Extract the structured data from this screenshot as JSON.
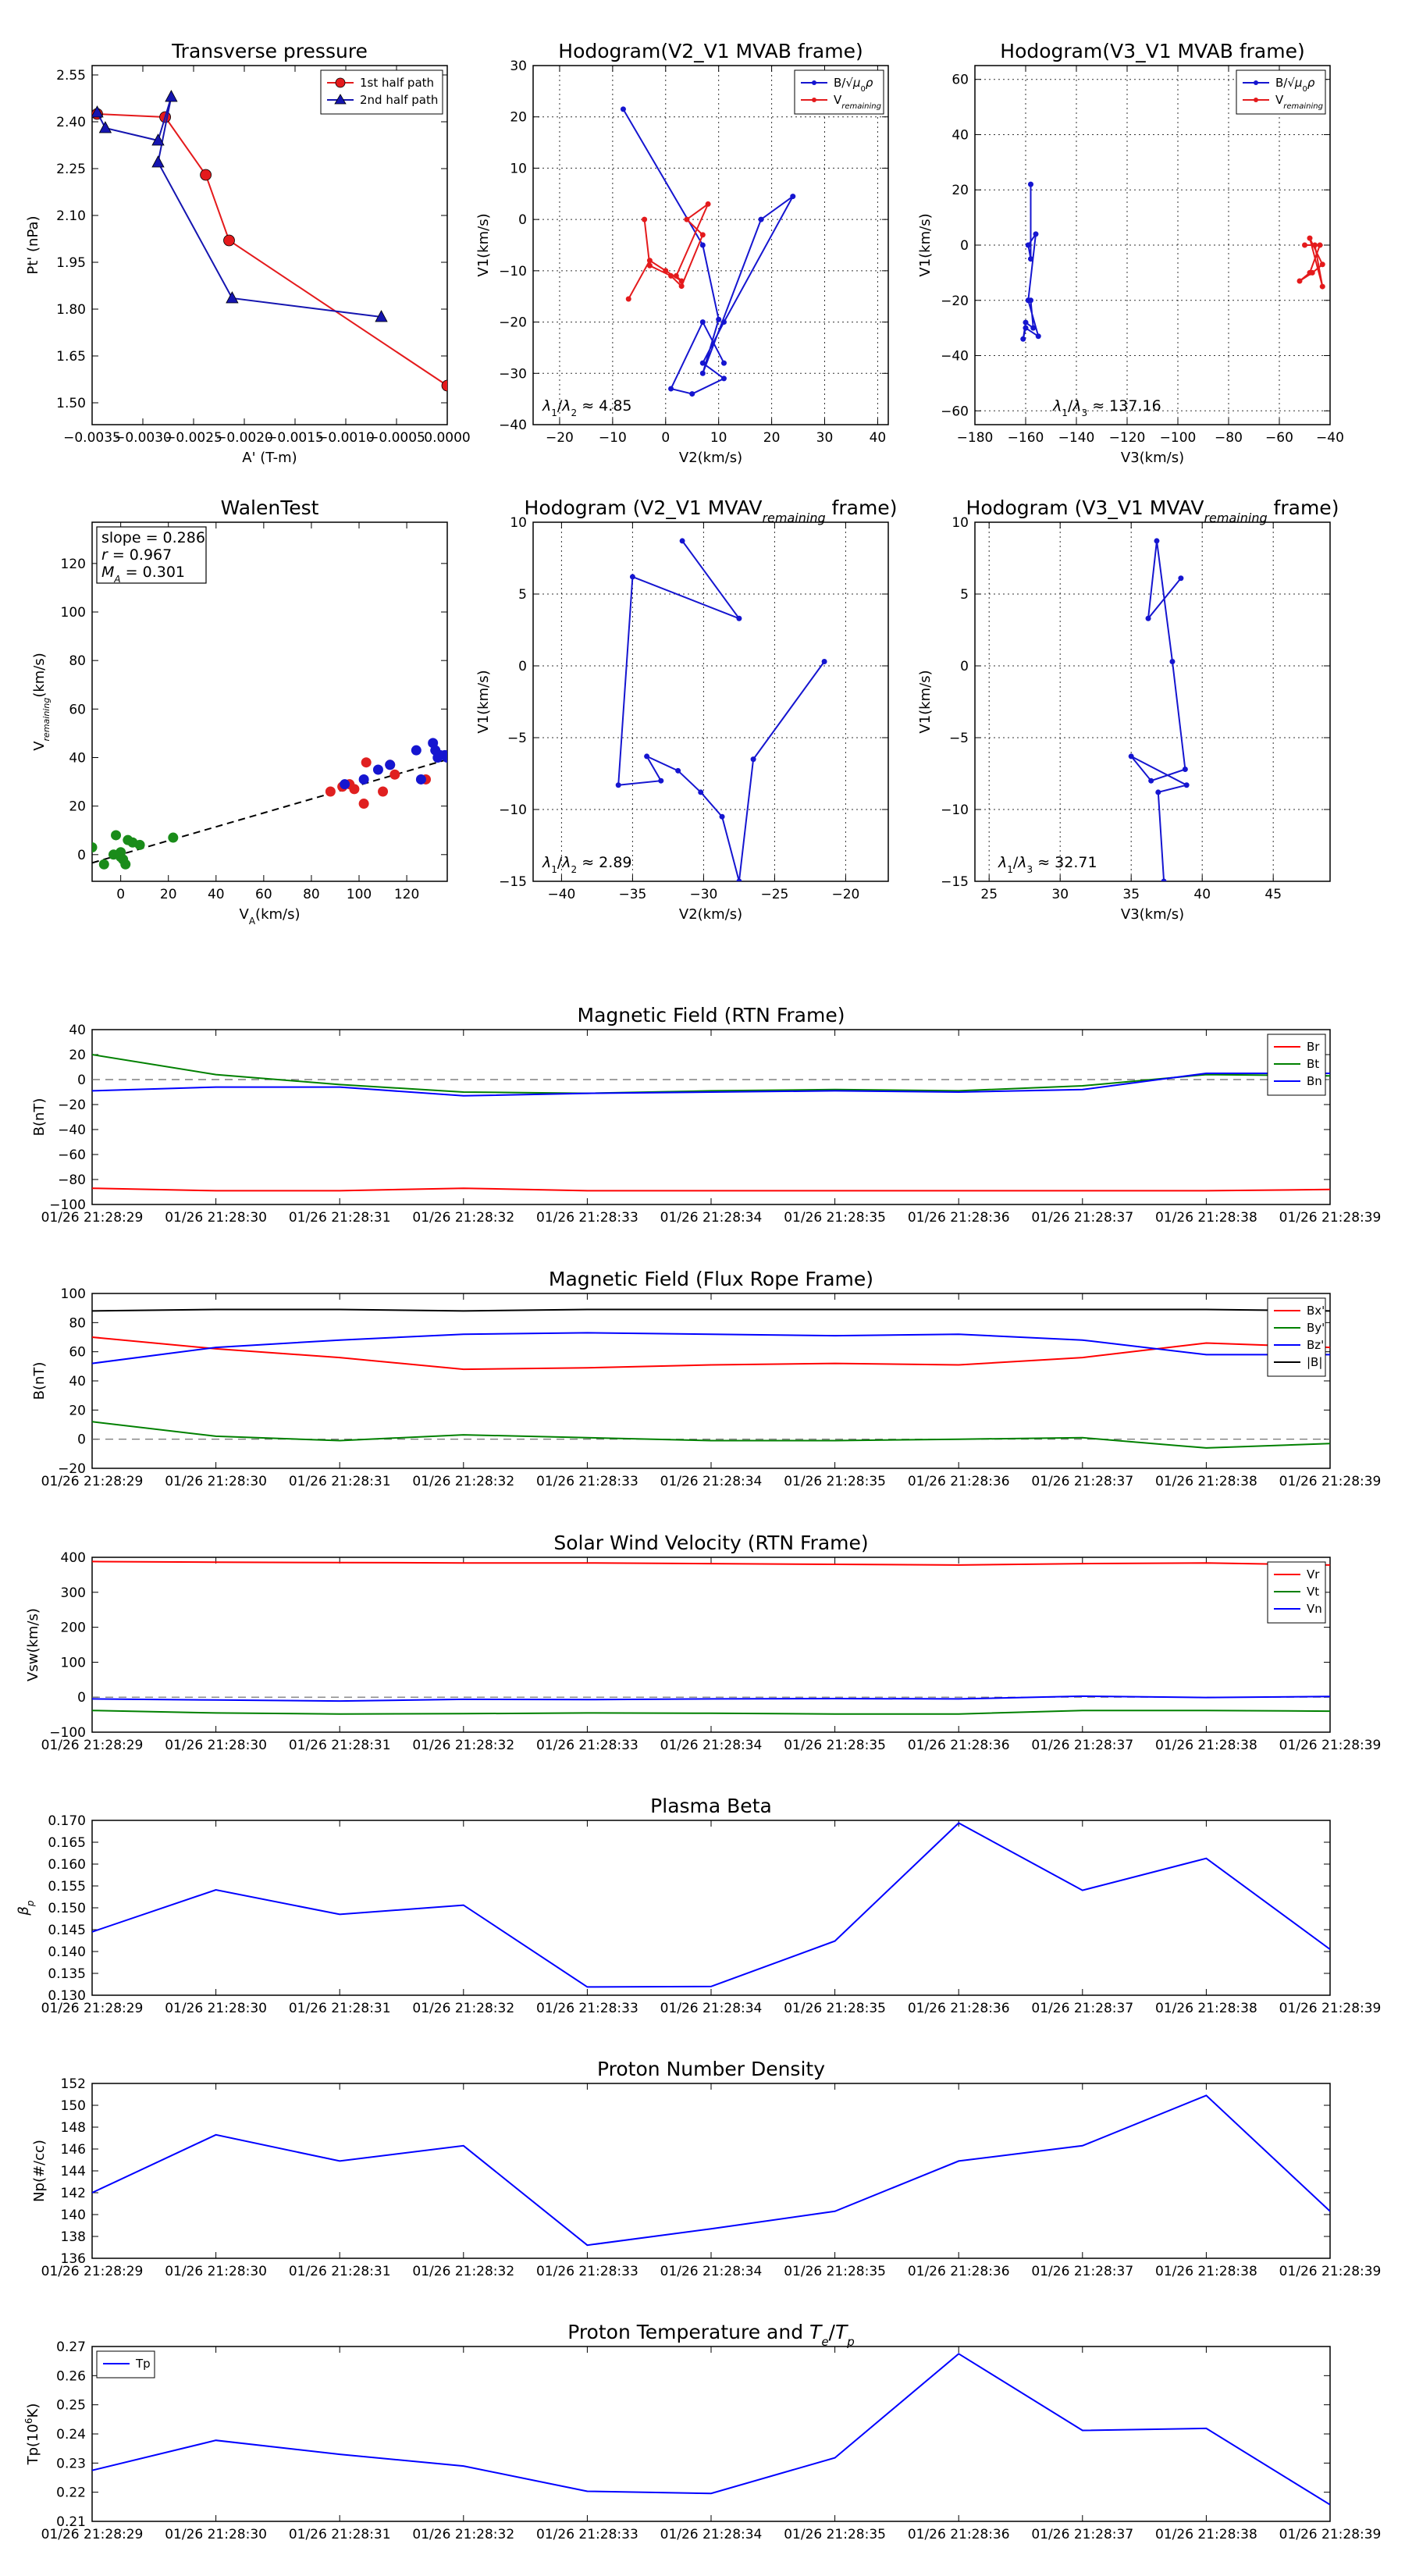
{
  "figure": {
    "background": "#ffffff"
  },
  "chart_data": [
    {
      "id": "tp",
      "type": "line",
      "title": "Transverse pressure",
      "xlabel": "A' (T-m)",
      "ylabel": "Pt' (nPa)",
      "xlim": [
        -0.0035,
        0.0
      ],
      "ylim": [
        1.43,
        2.58
      ],
      "xticks": [
        -0.0035,
        -0.003,
        -0.0025,
        -0.002,
        -0.0015,
        -0.001,
        -0.0005,
        0.0
      ],
      "xticklabels": [
        "−0.0035",
        "−0.0030",
        "−0.0025",
        "−0.0020",
        "−0.0015",
        "−0.0010",
        "−0.0005",
        "0.0000"
      ],
      "yticks": [
        1.5,
        1.65,
        1.8,
        1.95,
        2.1,
        2.25,
        2.4,
        2.55
      ],
      "yticklabels": [
        "1.50",
        "1.65",
        "1.80",
        "1.95",
        "2.10",
        "2.25",
        "2.40",
        "2.55"
      ],
      "legend": {
        "position": "top-right"
      },
      "series": [
        {
          "name": "1st half path",
          "color": "#e41a1c",
          "marker": "circle",
          "x": [
            -0.00345,
            -0.00278,
            -0.00238,
            -0.00215,
            0.0
          ],
          "y": [
            2.425,
            2.415,
            2.23,
            2.02,
            1.555
          ]
        },
        {
          "name": "2nd half path",
          "color": "#1515b0",
          "marker": "triangle",
          "x": [
            -0.00345,
            -0.00337,
            -0.00285,
            -0.00272,
            -0.00285,
            -0.00212,
            -0.00065
          ],
          "y": [
            2.43,
            2.38,
            2.34,
            2.48,
            2.27,
            1.835,
            1.775
          ]
        }
      ]
    },
    {
      "id": "h1",
      "type": "line",
      "title": "Hodogram(V2_V1 MVAB frame)",
      "xlabel": "V2(km/s)",
      "ylabel": "V1(km/s)",
      "xlim": [
        -25,
        42
      ],
      "ylim": [
        -40,
        30
      ],
      "xticks": [
        -20,
        -10,
        0,
        10,
        20,
        30,
        40
      ],
      "yticks": [
        -40,
        -30,
        -20,
        -10,
        0,
        10,
        20,
        30
      ],
      "grid": true,
      "annotation": "λ1/λ2 ≈ 4.85",
      "legend": {
        "position": "top-right"
      },
      "series": [
        {
          "name": "B/√(μ0ρ)",
          "color": "#1515d0",
          "x": [
            -8,
            7,
            10,
            7,
            18,
            24,
            11,
            7,
            11,
            5,
            1,
            7,
            11
          ],
          "y": [
            21.5,
            -5,
            -19.5,
            -30,
            0,
            4.5,
            -20,
            -28,
            -31,
            -34,
            -33,
            -20,
            -28
          ]
        },
        {
          "name": "V_remaining",
          "color": "#e41a1c",
          "x": [
            -4,
            -3,
            1,
            3,
            7,
            4,
            8,
            2,
            3,
            0,
            -3,
            -7
          ],
          "y": [
            0,
            -9,
            -11,
            -13,
            -3,
            0,
            3,
            -11,
            -12,
            -10,
            -8,
            -15.5
          ]
        }
      ]
    },
    {
      "id": "h2",
      "type": "line",
      "title": "Hodogram(V3_V1 MVAB frame)",
      "xlabel": "V3(km/s)",
      "ylabel": "V1(km/s)",
      "xlim": [
        -180,
        -40
      ],
      "ylim": [
        -65,
        65
      ],
      "xticks": [
        -180,
        -160,
        -140,
        -120,
        -100,
        -80,
        -60,
        -40
      ],
      "yticks": [
        -60,
        -40,
        -20,
        0,
        20,
        40,
        60
      ],
      "grid": true,
      "annotation": "λ1/λ3 ≈ 137.16",
      "legend": {
        "position": "top-right"
      },
      "series": [
        {
          "name": "B/√(μ0ρ)",
          "color": "#1515d0",
          "x": [
            -158,
            -158,
            -159,
            -156,
            -159,
            -155,
            -160,
            -161,
            -160,
            -157,
            -158
          ],
          "y": [
            22,
            -5,
            0,
            4,
            -20,
            -33,
            -30,
            -34,
            -28,
            -30,
            -20
          ]
        },
        {
          "name": "V_remaining",
          "color": "#e41a1c",
          "x": [
            -50,
            -46,
            -43,
            -48,
            -43,
            -47,
            -52,
            -48,
            -44
          ],
          "y": [
            0,
            0,
            -15,
            2.5,
            -7,
            -10,
            -13,
            -10,
            0
          ]
        }
      ]
    },
    {
      "id": "walen",
      "type": "scatter",
      "title": "WalenTest",
      "xlabel": "V_A(km/s)",
      "ylabel": "V_remaining(km/s)",
      "xlim": [
        -12,
        137
      ],
      "ylim": [
        -11,
        137
      ],
      "xticks": [
        0,
        20,
        40,
        60,
        80,
        100,
        120
      ],
      "yticks": [
        0,
        20,
        40,
        60,
        80,
        100,
        120
      ],
      "textbox": [
        "slope = 0.286",
        "r = 0.967",
        "M_A = 0.301"
      ],
      "fit_line": {
        "x": [
          -12,
          137
        ],
        "y": [
          -3.4,
          39.2
        ],
        "style": "dashed"
      },
      "series": [
        {
          "color": "#1a8c1a",
          "x": [
            -12,
            -7,
            -3,
            -2,
            0,
            0,
            1,
            2,
            3,
            5,
            8,
            22
          ],
          "y": [
            3,
            -4,
            0,
            8,
            1,
            -1,
            -2,
            -4,
            6,
            5,
            4,
            7
          ]
        },
        {
          "color": "#e02020",
          "x": [
            88,
            93,
            96,
            98,
            102,
            103,
            110,
            113,
            115,
            128
          ],
          "y": [
            26,
            28,
            29,
            27,
            21,
            38,
            26,
            37,
            33,
            31
          ]
        },
        {
          "color": "#1515d0",
          "x": [
            94,
            102,
            108,
            113,
            124,
            126,
            131,
            132,
            133,
            134,
            136,
            137
          ],
          "y": [
            29,
            31,
            35,
            37,
            43,
            31,
            46,
            43,
            40,
            41,
            41,
            40
          ]
        }
      ]
    },
    {
      "id": "h3",
      "type": "line",
      "title": "Hodogram (V2_V1 MVAV_remaining frame)",
      "xlabel": "V2(km/s)",
      "ylabel": "V1(km/s)",
      "xlim": [
        -42,
        -17
      ],
      "ylim": [
        -15,
        10
      ],
      "xticks": [
        -40,
        -35,
        -30,
        -25,
        -20
      ],
      "yticks": [
        -15,
        -10,
        -5,
        0,
        5,
        10
      ],
      "grid": true,
      "annotation": "λ1/λ2 ≈ 2.89",
      "series": [
        {
          "color": "#1515d0",
          "x": [
            -21.5,
            -26.5,
            -27.5,
            -28.7,
            -30.2,
            -31.8,
            -34,
            -33,
            -36,
            -35,
            -27.5,
            -31.5
          ],
          "y": [
            0.3,
            -6.5,
            -15,
            -10.5,
            -8.8,
            -7.3,
            -6.3,
            -8,
            -8.3,
            6.2,
            3.3,
            8.7
          ]
        }
      ]
    },
    {
      "id": "h4",
      "type": "line",
      "title": "Hodogram (V3_V1 MVAV_remaining frame)",
      "xlabel": "V3(km/s)",
      "ylabel": "V1(km/s)",
      "xlim": [
        24,
        49
      ],
      "ylim": [
        -15,
        10
      ],
      "xticks": [
        25,
        30,
        35,
        40,
        45
      ],
      "yticks": [
        -15,
        -10,
        -5,
        0,
        5,
        10
      ],
      "grid": true,
      "annotation": "λ1/λ3 ≈ 32.71",
      "series": [
        {
          "color": "#1515d0",
          "x": [
            38.5,
            36.2,
            36.8,
            37.9,
            38.8,
            36.4,
            35,
            38.9,
            36.9,
            37.3
          ],
          "y": [
            6.1,
            3.3,
            8.7,
            0.3,
            -7.2,
            -8,
            -6.3,
            -8.3,
            -8.8,
            -15
          ]
        }
      ]
    },
    {
      "id": "bfield",
      "type": "line",
      "title": "Magnetic Field (RTN Frame)",
      "ylabel": "B(nT)",
      "x": [
        "01/26 21:28:29",
        "01/26 21:28:30",
        "01/26 21:28:31",
        "01/26 21:28:32",
        "01/26 21:28:33",
        "01/26 21:28:34",
        "01/26 21:28:35",
        "01/26 21:28:36",
        "01/26 21:28:37",
        "01/26 21:28:38",
        "01/26 21:28:39"
      ],
      "ylim": [
        -100,
        40
      ],
      "yticks": [
        -100,
        -80,
        -60,
        -40,
        -20,
        0,
        20,
        40
      ],
      "zero_line": true,
      "legend": {
        "position": "top-right"
      },
      "series": [
        {
          "name": "Br",
          "color": "#ff0000",
          "values": [
            -87,
            -89,
            -89,
            -87,
            -89,
            -89,
            -89,
            -89,
            -89,
            -89,
            -88
          ]
        },
        {
          "name": "Bt",
          "color": "#008000",
          "values": [
            20,
            4,
            -4,
            -10,
            -11,
            -9,
            -8,
            -9,
            -5,
            4,
            3
          ]
        },
        {
          "name": "Bn",
          "color": "#0000ff",
          "values": [
            -9,
            -6,
            -6,
            -13,
            -11,
            -10,
            -9,
            -10,
            -8,
            5,
            5
          ]
        }
      ]
    },
    {
      "id": "bfr",
      "type": "line",
      "title": "Magnetic Field (Flux Rope Frame)",
      "ylabel": "B(nT)",
      "x": [
        "01/26 21:28:29",
        "01/26 21:28:30",
        "01/26 21:28:31",
        "01/26 21:28:32",
        "01/26 21:28:33",
        "01/26 21:28:34",
        "01/26 21:28:35",
        "01/26 21:28:36",
        "01/26 21:28:37",
        "01/26 21:28:38",
        "01/26 21:28:39"
      ],
      "ylim": [
        -20,
        100
      ],
      "yticks": [
        -20,
        0,
        20,
        40,
        60,
        80,
        100
      ],
      "zero_line": true,
      "legend": {
        "position": "top-right"
      },
      "series": [
        {
          "name": "Bx'",
          "color": "#ff0000",
          "values": [
            70,
            62,
            56,
            48,
            49,
            51,
            52,
            51,
            56,
            66,
            63
          ]
        },
        {
          "name": "By'",
          "color": "#008000",
          "values": [
            12,
            2,
            -1,
            3,
            1,
            -1,
            -1,
            0,
            1,
            -6,
            -3
          ]
        },
        {
          "name": "Bz'",
          "color": "#0000ff",
          "values": [
            52,
            63,
            68,
            72,
            73,
            72,
            71,
            72,
            68,
            58,
            58
          ]
        },
        {
          "name": "|B|",
          "color": "#000000",
          "values": [
            88,
            89,
            89,
            88,
            89,
            89,
            89,
            89,
            89,
            89,
            88
          ]
        }
      ]
    },
    {
      "id": "vsw",
      "type": "line",
      "title": "Solar Wind Velocity (RTN Frame)",
      "ylabel": "Vsw(km/s)",
      "x": [
        "01/26 21:28:29",
        "01/26 21:28:30",
        "01/26 21:28:31",
        "01/26 21:28:32",
        "01/26 21:28:33",
        "01/26 21:28:34",
        "01/26 21:28:35",
        "01/26 21:28:36",
        "01/26 21:28:37",
        "01/26 21:28:38",
        "01/26 21:28:39"
      ],
      "ylim": [
        -100,
        400
      ],
      "yticks": [
        -100,
        0,
        100,
        200,
        300,
        400
      ],
      "zero_line": true,
      "legend": {
        "position": "top-right"
      },
      "series": [
        {
          "name": "Vr",
          "color": "#ff0000",
          "values": [
            388,
            386,
            385,
            384,
            384,
            382,
            380,
            378,
            382,
            384,
            378
          ]
        },
        {
          "name": "Vt",
          "color": "#008000",
          "values": [
            -38,
            -45,
            -48,
            -47,
            -45,
            -46,
            -48,
            -48,
            -38,
            -38,
            -40
          ]
        },
        {
          "name": "Vn",
          "color": "#0000ff",
          "values": [
            -5,
            -8,
            -11,
            -6,
            -7,
            -5,
            -4,
            -5,
            3,
            -1,
            2
          ]
        }
      ]
    },
    {
      "id": "beta",
      "type": "line",
      "title": "Plasma Beta",
      "ylabel": "β_p",
      "x": [
        "01/26 21:28:29",
        "01/26 21:28:30",
        "01/26 21:28:31",
        "01/26 21:28:32",
        "01/26 21:28:33",
        "01/26 21:28:34",
        "01/26 21:28:35",
        "01/26 21:28:36",
        "01/26 21:28:37",
        "01/26 21:28:38",
        "01/26 21:28:39"
      ],
      "ylim": [
        0.13,
        0.17
      ],
      "yticks": [
        0.13,
        0.135,
        0.14,
        0.145,
        0.15,
        0.155,
        0.16,
        0.165,
        0.17
      ],
      "series": [
        {
          "color": "#0000ff",
          "values": [
            0.1445,
            0.1541,
            0.1485,
            0.1506,
            0.1319,
            0.132,
            0.1424,
            0.1694,
            0.154,
            0.1613,
            0.1405
          ]
        }
      ]
    },
    {
      "id": "np",
      "type": "line",
      "title": "Proton Number Density",
      "ylabel": "Np(#/cc)",
      "x": [
        "01/26 21:28:29",
        "01/26 21:28:30",
        "01/26 21:28:31",
        "01/26 21:28:32",
        "01/26 21:28:33",
        "01/26 21:28:34",
        "01/26 21:28:35",
        "01/26 21:28:36",
        "01/26 21:28:37",
        "01/26 21:28:38",
        "01/26 21:28:39"
      ],
      "ylim": [
        136,
        152
      ],
      "yticks": [
        136,
        138,
        140,
        142,
        144,
        146,
        148,
        150,
        152
      ],
      "series": [
        {
          "color": "#0000ff",
          "values": [
            142,
            147.3,
            144.9,
            146.3,
            137.2,
            138.7,
            140.3,
            144.9,
            146.3,
            150.9,
            140.3
          ]
        }
      ]
    },
    {
      "id": "tpp",
      "type": "line",
      "title": "Proton Temperature and Te/Tp",
      "ylabel": "Tp(10^6K)",
      "x": [
        "01/26 21:28:29",
        "01/26 21:28:30",
        "01/26 21:28:31",
        "01/26 21:28:32",
        "01/26 21:28:33",
        "01/26 21:28:34",
        "01/26 21:28:35",
        "01/26 21:28:36",
        "01/26 21:28:37",
        "01/26 21:28:38",
        "01/26 21:28:39"
      ],
      "ylim": [
        0.21,
        0.27
      ],
      "yticks": [
        0.21,
        0.22,
        0.23,
        0.24,
        0.25,
        0.26,
        0.27
      ],
      "legend": {
        "position": "top-left"
      },
      "series": [
        {
          "name": "Tp",
          "color": "#0000ff",
          "values": [
            0.2275,
            0.2378,
            0.233,
            0.229,
            0.2203,
            0.2196,
            0.2318,
            0.2675,
            0.2412,
            0.2419,
            0.2157
          ]
        }
      ]
    }
  ]
}
